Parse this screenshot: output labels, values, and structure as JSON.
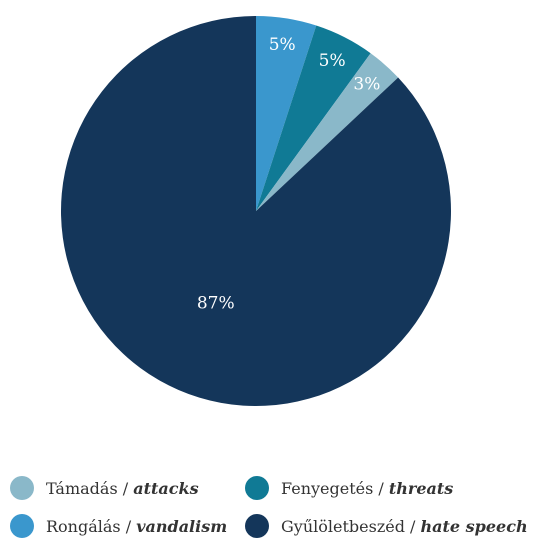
{
  "chart_data": {
    "type": "pie",
    "slices": [
      {
        "name_hu": "Rongálás",
        "name_en": "vandalism",
        "value": 5,
        "label": "5%",
        "color": "#3a97cd"
      },
      {
        "name_hu": "Fenyegetés",
        "name_en": "threats",
        "value": 5,
        "label": "5%",
        "color": "#107a95"
      },
      {
        "name_hu": "Támadás",
        "name_en": "attacks",
        "value": 3,
        "label": "3%",
        "color": "#8ab8c9"
      },
      {
        "name_hu": "Gyűlöletbeszéd",
        "name_en": "hate speech",
        "value": 87,
        "label": "87%",
        "color": "#14365a"
      }
    ],
    "start": "top, clockwise"
  },
  "legend": [
    {
      "hu": "Támadás /",
      "en": "attacks",
      "color": "#8ab8c9"
    },
    {
      "hu": "Fenyegetés /",
      "en": "threats",
      "color": "#107a95"
    },
    {
      "hu": "Rongálás /",
      "en": "vandalism",
      "color": "#3a97cd"
    },
    {
      "hu": "Gyűlöletbeszéd /",
      "en": "hate speech",
      "color": "#14365a"
    }
  ]
}
